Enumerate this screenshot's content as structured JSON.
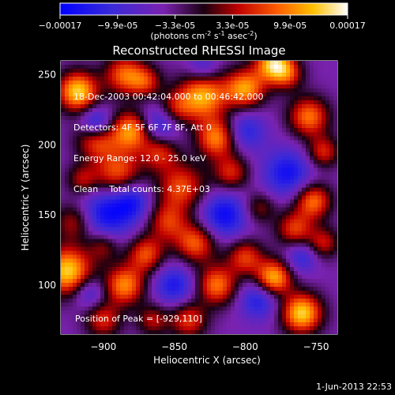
{
  "chart_data": {
    "type": "heatmap",
    "title": "Reconstructed RHESSI Image",
    "colorbar": {
      "ticks": [
        "-0.00017",
        "-9.9e-05",
        "-3.3e-05",
        "3.3e-05",
        "9.9e-05",
        "0.00017"
      ],
      "range": [
        -0.00017,
        0.00017
      ],
      "unit_label": "(photons cm",
      "unit_sup1": "-2",
      "unit_mid": " s",
      "unit_sup2": "-1",
      "unit_mid2": " asec",
      "unit_sup3": "-2",
      "unit_end": ")"
    },
    "xlabel": "Heliocentric X (arcsec)",
    "ylabel": "Heliocentric Y (arcsec)",
    "xlim": [
      -930,
      -735
    ],
    "ylim": [
      65,
      260
    ],
    "xticks": [
      -900,
      -850,
      -800,
      -750
    ],
    "xtick_labels": [
      "−900",
      "−850",
      "−800",
      "−750"
    ],
    "yticks": [
      100,
      150,
      200,
      250
    ],
    "ytick_labels": [
      "100",
      "150",
      "200",
      "250"
    ],
    "annotations": {
      "time": "18-Dec-2003 00:42:04.000 to 00:46:42.000",
      "detectors": "Detectors: 4F 5F 6F 7F 8F, Att 0",
      "energy": "Energy Range: 12.0 - 25.0 keV",
      "clean": "Clean    Total counts: 4.37E+03",
      "peak": "Position of Peak = [-929,110]"
    },
    "blobs": [
      [
        -925,
        110,
        1.0,
        12
      ],
      [
        -920,
        145,
        0.55,
        10
      ],
      [
        -918,
        238,
        1.0,
        10
      ],
      [
        -905,
        205,
        0.7,
        10
      ],
      [
        -890,
        180,
        0.7,
        12
      ],
      [
        -880,
        210,
        0.85,
        10
      ],
      [
        -885,
        250,
        0.7,
        10
      ],
      [
        -870,
        245,
        0.5,
        8
      ],
      [
        -885,
        100,
        0.8,
        10
      ],
      [
        -870,
        122,
        0.65,
        9
      ],
      [
        -855,
        145,
        0.55,
        10
      ],
      [
        -845,
        170,
        0.65,
        12
      ],
      [
        -830,
        235,
        0.9,
        12
      ],
      [
        -820,
        205,
        0.8,
        10
      ],
      [
        -810,
        180,
        0.55,
        9
      ],
      [
        -800,
        240,
        0.85,
        10
      ],
      [
        -780,
        258,
        0.95,
        9
      ],
      [
        -770,
        250,
        0.5,
        8
      ],
      [
        -755,
        220,
        0.75,
        10
      ],
      [
        -745,
        195,
        0.55,
        8
      ],
      [
        -835,
        130,
        0.7,
        10
      ],
      [
        -820,
        100,
        0.75,
        10
      ],
      [
        -800,
        120,
        0.6,
        9
      ],
      [
        -780,
        105,
        0.95,
        9
      ],
      [
        -765,
        140,
        0.6,
        9
      ],
      [
        -752,
        160,
        0.75,
        9
      ],
      [
        -745,
        130,
        0.5,
        8
      ],
      [
        -760,
        80,
        1.0,
        10
      ],
      [
        -840,
        75,
        0.6,
        9
      ],
      [
        -900,
        75,
        0.55,
        9
      ],
      [
        -865,
        75,
        0.45,
        8
      ],
      [
        -790,
        155,
        0.4,
        8
      ],
      [
        -900,
        128,
        0.45,
        8
      ],
      [
        -860,
        195,
        0.55,
        9
      ],
      [
        -850,
        225,
        0.5,
        9
      ],
      [
        -915,
        175,
        0.45,
        8
      ],
      [
        -900,
        150,
        -0.6,
        14
      ],
      [
        -905,
        215,
        -0.7,
        8
      ],
      [
        -860,
        215,
        -0.55,
        10
      ],
      [
        -880,
        160,
        -0.5,
        10
      ],
      [
        -815,
        150,
        -0.6,
        12
      ],
      [
        -800,
        210,
        -0.45,
        10
      ],
      [
        -770,
        180,
        -0.55,
        12
      ],
      [
        -790,
        90,
        -0.5,
        10
      ],
      [
        -850,
        100,
        -0.5,
        10
      ],
      [
        -910,
        95,
        -0.4,
        8
      ],
      [
        -760,
        120,
        -0.4,
        8
      ],
      [
        -830,
        255,
        -0.35,
        8
      ]
    ]
  },
  "footer": {
    "timestamp": "1-Jun-2013 22:53"
  }
}
